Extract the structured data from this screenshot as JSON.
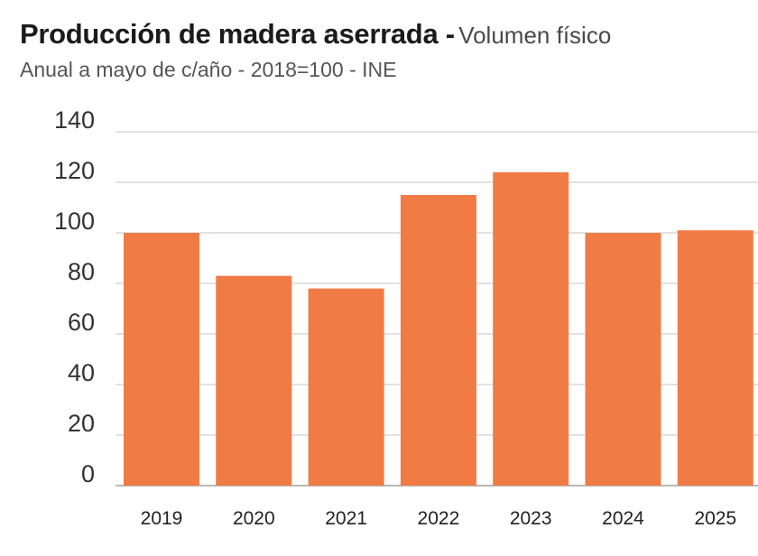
{
  "header": {
    "title_bold": "Producción de madera aserrada -",
    "title_light": "Volumen físico",
    "subtitle": "Anual a mayo de c/año - 2018=100 - INE"
  },
  "colors": {
    "bar": "#f07b45",
    "grid": "#d9d9d9",
    "axis": "#b8b8b8"
  },
  "chart_data": {
    "type": "bar",
    "title": "Producción de madera aserrada - Volumen físico",
    "subtitle": "Anual a mayo de c/año - 2018=100 - INE",
    "xlabel": "",
    "ylabel": "",
    "categories": [
      "2019",
      "2020",
      "2021",
      "2022",
      "2023",
      "2024",
      "2025"
    ],
    "values": [
      100,
      83,
      78,
      115,
      124,
      100,
      101
    ],
    "ylim": [
      0,
      140
    ],
    "yticks": [
      "0",
      "20",
      "40",
      "60",
      "80",
      "100",
      "120",
      "140"
    ],
    "grid": true,
    "legend": "none"
  }
}
